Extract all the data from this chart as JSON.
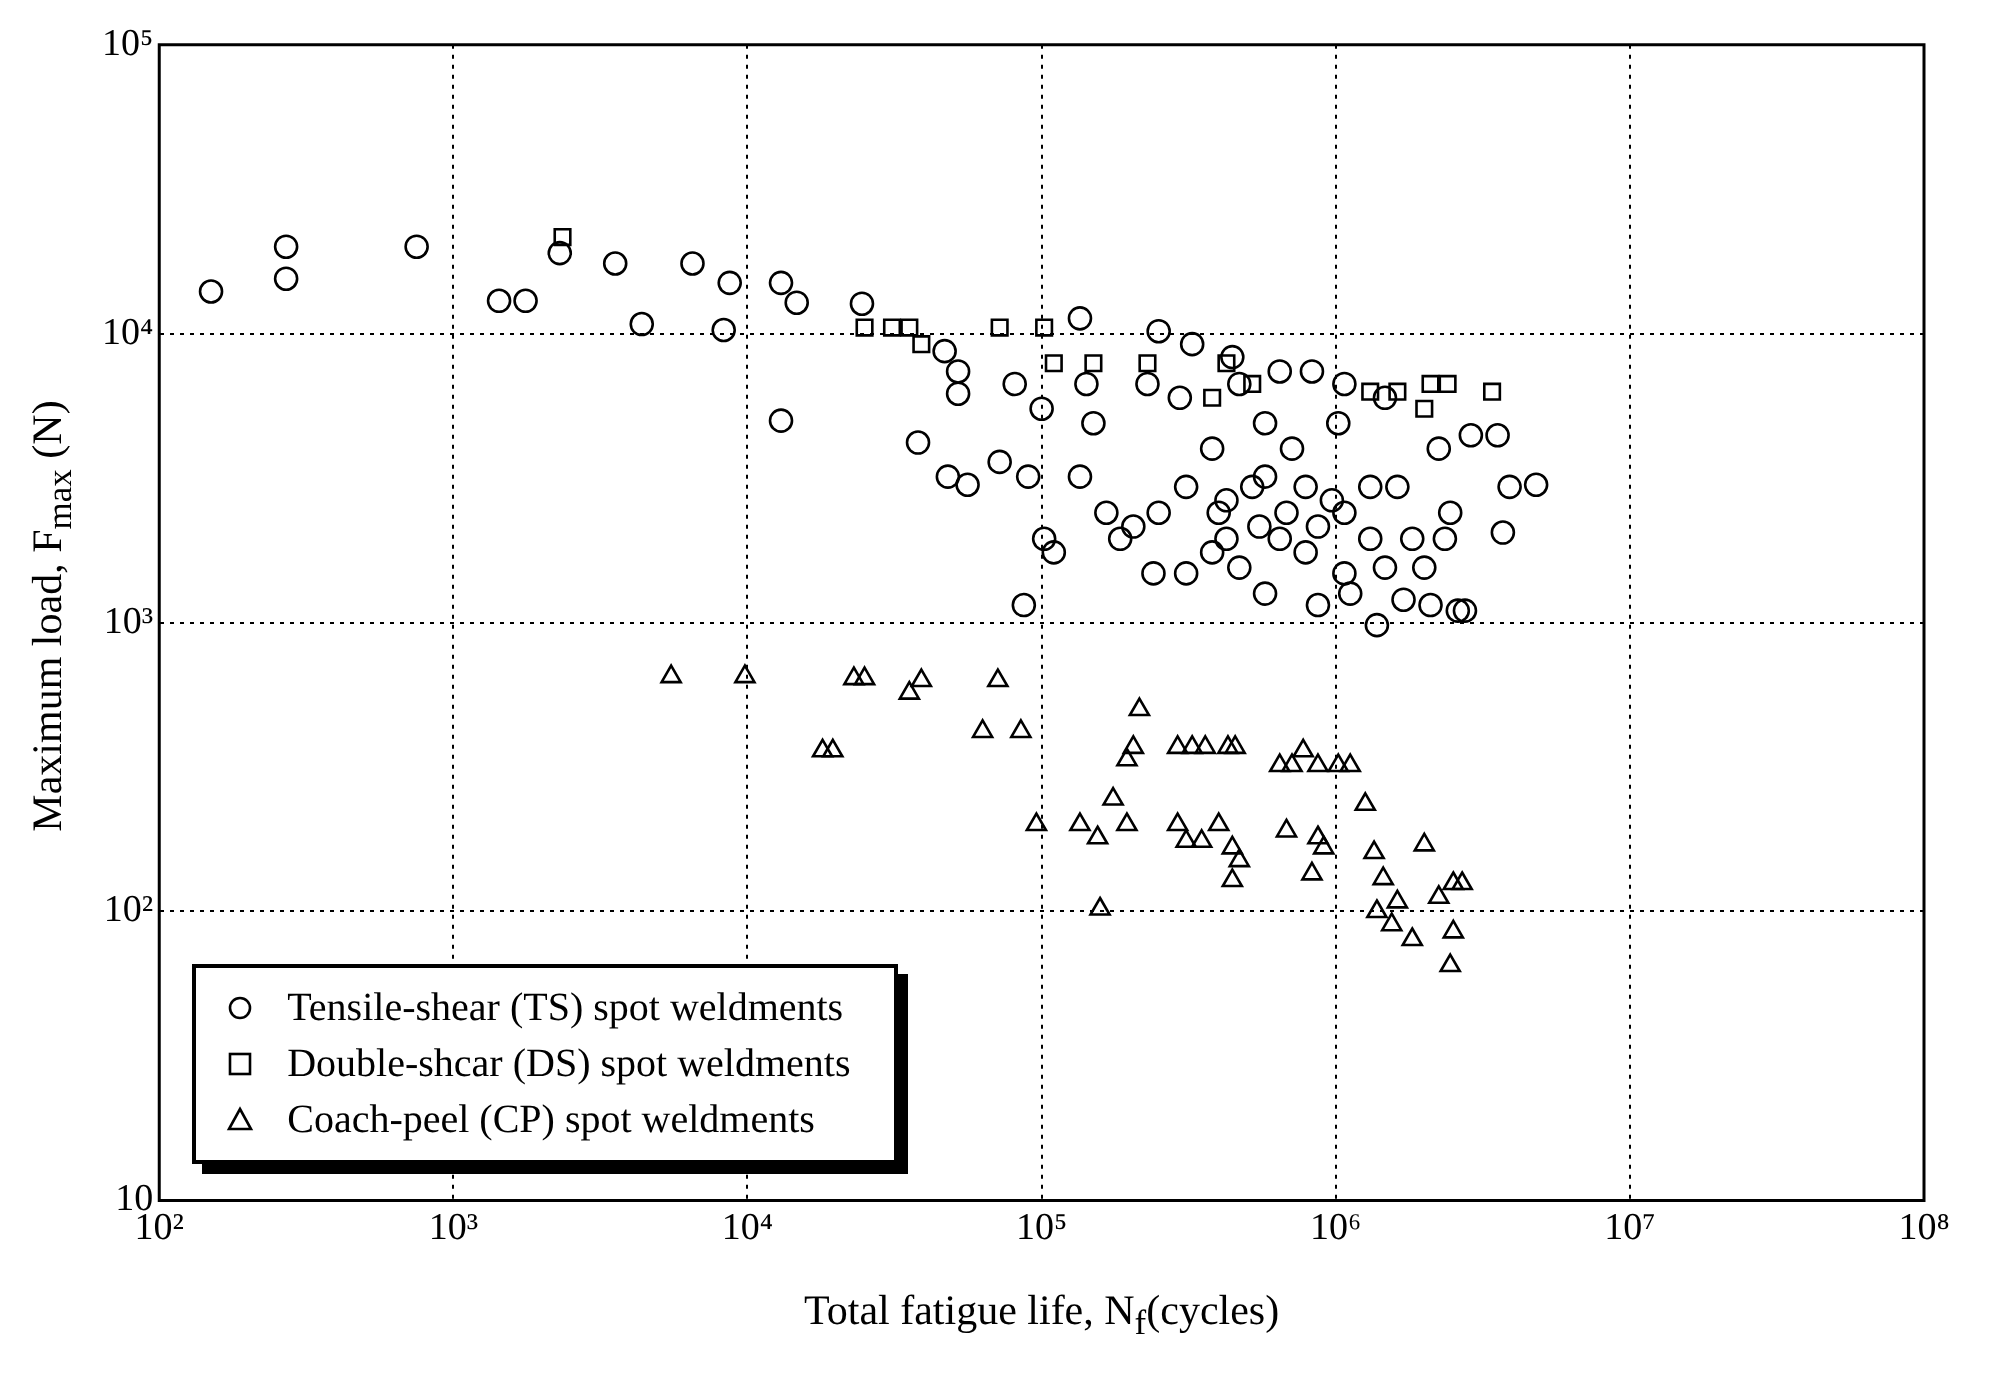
{
  "chart_data": {
    "type": "scatter",
    "xlabel": "Total fatigue life, N$_{f}$(cycles)",
    "ylabel": "Maximum load, F$_{max}$ (N)",
    "log": "xy",
    "grid": true,
    "legend": "bottom left",
    "xlim": [
      100,
      100000000
    ],
    "ylim": [
      10,
      100000
    ],
    "xticks": [
      {
        "value": 100,
        "label": "10²"
      },
      {
        "value": 1000,
        "label": "10³"
      },
      {
        "value": 10000,
        "label": "10⁴"
      },
      {
        "value": 100000,
        "label": "10⁵"
      },
      {
        "value": 1000000,
        "label": "10⁶"
      },
      {
        "value": 10000000,
        "label": "10⁷"
      },
      {
        "value": 100000000,
        "label": "10⁸"
      }
    ],
    "yticks": [
      10,
      {
        "value": 100,
        "label": "10²"
      },
      {
        "value": 1000,
        "label": "10³"
      },
      {
        "value": 10000,
        "label": "10⁴"
      },
      {
        "value": 100000,
        "label": "10⁵"
      }
    ],
    "series": [
      {
        "name": "Tensile-shear (TS) spot weldments",
        "color": "#000000",
        "marker": "circle",
        "x": [
          150,
          270,
          270,
          750,
          1430,
          1760,
          2300,
          3550,
          4370,
          6500,
          8700,
          8300,
          13000,
          14700,
          13000,
          24500,
          38000,
          87000,
          46800,
          52000,
          52000,
          48000,
          56000,
          72000,
          81000,
          90000,
          102000,
          110000,
          100000,
          135000,
          142000,
          150000,
          135000,
          166000,
          185000,
          229000,
          240000,
          250000,
          295000,
          310000,
          310000,
          325000,
          380000,
          400000,
          425000,
          445000,
          470000,
          470000,
          520000,
          550000,
          575000,
          575000,
          645000,
          680000,
          710000,
          790000,
          830000,
          870000,
          970000,
          1020000,
          1070000,
          1070000,
          1120000,
          1310000,
          1380000,
          1470000,
          1620000,
          1700000,
          2000000,
          2100000,
          2240000,
          2450000,
          2600000,
          2750000,
          2880000,
          3550000,
          3900000,
          4800000,
          3700000,
          2350000,
          425000,
          645000,
          870000,
          1070000,
          1310000,
          250000,
          205000,
          380000,
          575000,
          790000,
          1820000,
          1470000
        ],
        "values": [
          14000,
          20000,
          15500,
          20000,
          13000,
          13000,
          19000,
          17500,
          10800,
          17500,
          15000,
          10300,
          15000,
          12800,
          5000,
          12700,
          4200,
          1150,
          8700,
          7400,
          6200,
          3200,
          3000,
          3600,
          6700,
          3200,
          1950,
          1750,
          5500,
          11300,
          6700,
          4900,
          3200,
          2400,
          1950,
          6700,
          1480,
          10200,
          6000,
          2950,
          1480,
          9200,
          4000,
          2400,
          1950,
          8300,
          6700,
          1550,
          2950,
          2150,
          4900,
          1260,
          7400,
          2400,
          4000,
          1750,
          7400,
          1150,
          2650,
          4900,
          1480,
          6700,
          1260,
          1950,
          980,
          6000,
          2950,
          1200,
          1550,
          1150,
          4000,
          2400,
          1100,
          1100,
          4450,
          4450,
          2950,
          3000,
          2050,
          1950,
          2650,
          1950,
          2150,
          2400,
          2950,
          2400,
          2150,
          1750,
          3200,
          2950,
          1950,
          1550
        ]
      },
      {
        "name": "Double-shcar (DS) spot weldments",
        "color": "#000000",
        "marker": "square",
        "x": [
          2350,
          25000,
          31000,
          35500,
          39000,
          72000,
          102000,
          110000,
          150000,
          229000,
          425000,
          520000,
          1310000,
          1620000,
          2100000,
          2400000,
          3400000,
          380000,
          2000000
        ],
        "values": [
          21600,
          10500,
          10500,
          10500,
          9200,
          10500,
          10500,
          7900,
          7900,
          7900,
          7900,
          6700,
          6300,
          6300,
          6700,
          6700,
          6300,
          6000,
          5500
        ]
      },
      {
        "name": "Coach-peel (CP) spot weldments",
        "color": "#000000",
        "marker": "triangle",
        "x": [
          5500,
          9800,
          23000,
          25000,
          18000,
          19500,
          35500,
          39000,
          71000,
          63000,
          85000,
          96000,
          135000,
          155000,
          158000,
          175000,
          195000,
          195000,
          205000,
          215000,
          290000,
          325000,
          360000,
          430000,
          455000,
          290000,
          310000,
          350000,
          400000,
          445000,
          470000,
          445000,
          680000,
          645000,
          710000,
          775000,
          870000,
          1020000,
          1120000,
          1260000,
          870000,
          910000,
          830000,
          1350000,
          1450000,
          1620000,
          1380000,
          1550000,
          1820000,
          2000000,
          2240000,
          2510000,
          2690000,
          2510000,
          2450000
        ],
        "values": [
          650,
          650,
          640,
          640,
          360,
          360,
          570,
          630,
          630,
          420,
          420,
          200,
          200,
          180,
          102,
          245,
          200,
          335,
          370,
          500,
          370,
          370,
          370,
          370,
          370,
          200,
          175,
          175,
          200,
          166,
          150,
          128,
          190,
          320,
          320,
          360,
          320,
          320,
          320,
          235,
          180,
          166,
          135,
          160,
          130,
          108,
          100,
          90,
          80,
          170,
          112,
          125,
          125,
          85,
          65
        ]
      }
    ]
  }
}
